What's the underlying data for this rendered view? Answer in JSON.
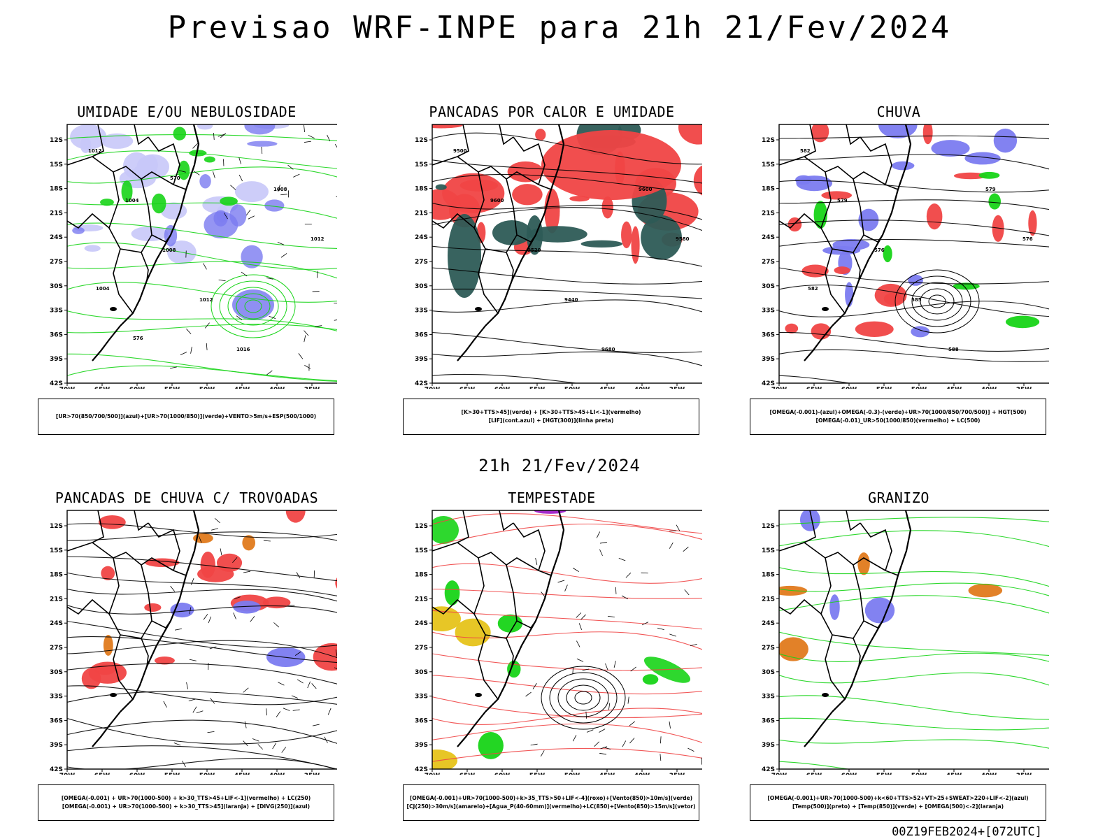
{
  "page": {
    "title": "Previsao WRF-INPE  para 21h 21/Fev/2024",
    "mid_title": "21h 21/Fev/2024",
    "run_stamp": "00Z19FEB2024+[072UTC]"
  },
  "axes": {
    "lat_labels": [
      "12S",
      "15S",
      "18S",
      "21S",
      "24S",
      "27S",
      "30S",
      "33S",
      "36S",
      "39S",
      "42S"
    ],
    "lon_labels": [
      "70W",
      "65W",
      "60W",
      "55W",
      "50W",
      "45W",
      "40W",
      "35W",
      "30W"
    ]
  },
  "colors": {
    "blue": "#7b7bf0",
    "light_blue": "#c8c8f8",
    "green": "#17d417",
    "red": "#f04545",
    "dark_teal": "#2d5b56",
    "orange": "#e07a1c",
    "yellow": "#e6c31a",
    "purple": "#a020c8"
  },
  "panels": [
    {
      "title": "UMIDADE E/OU NEBULOSIDADE",
      "caption": [
        "[UR>70(850/700/500)](azul)+[UR>70(1000/850)](verde)+VENTO>5m/s+ESP(500/1000)"
      ],
      "labels": [
        "1012",
        "1004",
        "1008",
        "1012",
        "1016",
        "1008",
        "1012",
        "1004",
        "576",
        "570"
      ]
    },
    {
      "title": "PANCADAS POR CALOR E UMIDADE",
      "caption": [
        "[K>30+TTS>45](verde) + [K>30+TTS>45+LI<-1](vermelho)",
        "[LIF](cont.azul) + [HGT(300)](linha preta)"
      ],
      "labels": [
        "9500",
        "9600",
        "9520",
        "9440",
        "9680",
        "9600",
        "9580"
      ]
    },
    {
      "title": "CHUVA",
      "caption": [
        "[OMEGA(-0.001)-(azul)+OMEGA(-0.3)-(verde)+UR>70(1000/850/700/500)] + HGT(500)",
        "[OMEGA(-0.01)_UR>50(1000/850)(vermelho) + LC(500)"
      ],
      "labels": [
        "582",
        "579",
        "576",
        "585",
        "588",
        "579",
        "576",
        "582"
      ]
    },
    {
      "title": "PANCADAS DE CHUVA C/ TROVOADAS",
      "caption": [
        "[OMEGA(-0.001) + UR>70(1000-500) + k>30_TTS>45+LIF<-1](vermelho) + LC(250)",
        "[OMEGA(-0.001) + UR>70(1000-500) + k>30_TTS>45](laranja) + [DIVG(250)](azul)"
      ],
      "labels": []
    },
    {
      "title": "TEMPESTADE",
      "caption": [
        "[OMEGA(-0.001)+UR>70(1000-500)+k>35_TTS>50+LIF<-4](roxo)+[Vento(850)>10m/s](verde)",
        "[CJ(250)>30m/s](amarelo)+[Agua_P(40-60mm)](vermelho)+LC(850)+[Vento(850)>15m/s](vetor)"
      ],
      "labels": []
    },
    {
      "title": "GRANIZO",
      "caption": [
        "[OMEGA(-0.001)+UR>70(1000-500)+k<60+TTS>52+VT>25+SWEAT>220+LIF<-2](azul)",
        "[Temp(500)](preto) + [Temp(850)](verde) + [OMEGA(500)<-2](laranja)"
      ],
      "labels": []
    }
  ]
}
